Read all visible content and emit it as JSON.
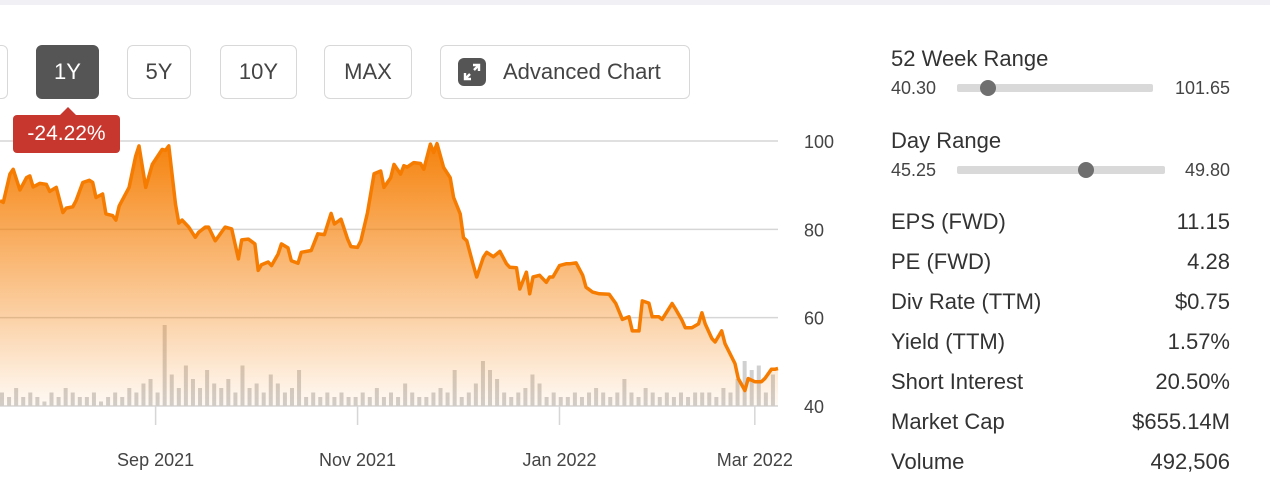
{
  "periods": {
    "partial": "",
    "y1": "1Y",
    "y5": "5Y",
    "y10": "10Y",
    "max": "MAX",
    "advanced": "Advanced Chart"
  },
  "change_badge": "-24.22%",
  "stats": {
    "week52": {
      "label": "52 Week Range",
      "low": "40.30",
      "high": "101.65",
      "position": 0.16
    },
    "day": {
      "label": "Day Range",
      "low": "45.25",
      "high": "49.80",
      "position": 0.62
    },
    "rows": [
      {
        "label": "EPS (FWD)",
        "value": "11.15"
      },
      {
        "label": "PE (FWD)",
        "value": "4.28"
      },
      {
        "label": "Div Rate (TTM)",
        "value": "$0.75"
      },
      {
        "label": "Yield (TTM)",
        "value": "1.57%"
      },
      {
        "label": "Short Interest",
        "value": "20.50%"
      },
      {
        "label": "Market Cap",
        "value": "$655.14M"
      },
      {
        "label": "Volume",
        "value": "492,506"
      }
    ]
  },
  "colors": {
    "line": "#f57c00",
    "badge": "#c8372d",
    "active": "#555555"
  },
  "chart_data": {
    "type": "area",
    "xunit": "days from 2021-09-01",
    "xlim": [
      -47,
      188
    ],
    "ylim": [
      40,
      100
    ],
    "yticks": [
      100,
      80,
      60,
      40
    ],
    "xticks": [
      {
        "day": 0,
        "label": "Sep 2021"
      },
      {
        "day": 61,
        "label": "Nov 2021"
      },
      {
        "day": 122,
        "label": "Jan 2022"
      },
      {
        "day": 181,
        "label": "Mar 2022"
      }
    ],
    "grid": true,
    "price": [
      [
        -47,
        86.5
      ],
      [
        -46,
        86.1
      ],
      [
        -44,
        92.5
      ],
      [
        -43,
        93.6
      ],
      [
        -41,
        88.9
      ],
      [
        -39,
        91.7
      ],
      [
        -38,
        92.1
      ],
      [
        -37,
        89.6
      ],
      [
        -35,
        90.4
      ],
      [
        -33,
        90.2
      ],
      [
        -32,
        88.6
      ],
      [
        -30,
        89.5
      ],
      [
        -28,
        83.8
      ],
      [
        -27,
        84.8
      ],
      [
        -25,
        85.1
      ],
      [
        -24,
        86.5
      ],
      [
        -22,
        90.6
      ],
      [
        -20,
        91.1
      ],
      [
        -19,
        90.6
      ],
      [
        -18,
        87.2
      ],
      [
        -16,
        88
      ],
      [
        -15,
        83.5
      ],
      [
        -13,
        83.1
      ],
      [
        -12,
        82.1
      ],
      [
        -11,
        85.3
      ],
      [
        -8,
        89.5
      ],
      [
        -6,
        96.6
      ],
      [
        -5,
        98.9
      ],
      [
        -3,
        89.5
      ],
      [
        -1,
        94.7
      ],
      [
        2,
        98.1
      ],
      [
        3,
        97.9
      ],
      [
        4,
        98.9
      ],
      [
        6,
        85.7
      ],
      [
        7,
        81.4
      ],
      [
        8,
        82.1
      ],
      [
        10,
        80.5
      ],
      [
        12,
        78.2
      ],
      [
        13,
        79.3
      ],
      [
        15,
        80.5
      ],
      [
        16,
        80.5
      ],
      [
        18,
        77.4
      ],
      [
        19,
        78.4
      ],
      [
        21,
        80.5
      ],
      [
        23,
        80.1
      ],
      [
        25,
        73.3
      ],
      [
        26,
        77.6
      ],
      [
        28,
        77.8
      ],
      [
        30,
        76.7
      ],
      [
        31,
        70.7
      ],
      [
        32,
        72
      ],
      [
        34,
        72.6
      ],
      [
        35,
        71.8
      ],
      [
        37,
        74.4
      ],
      [
        38,
        76.7
      ],
      [
        40,
        75.8
      ],
      [
        41,
        72.9
      ],
      [
        43,
        72.3
      ],
      [
        44,
        74.8
      ],
      [
        47,
        75.2
      ],
      [
        49,
        79
      ],
      [
        51,
        78.8
      ],
      [
        53,
        83.6
      ],
      [
        54,
        81.2
      ],
      [
        56,
        82.3
      ],
      [
        58,
        77.8
      ],
      [
        59,
        76.1
      ],
      [
        61,
        75.9
      ],
      [
        62,
        77.4
      ],
      [
        64,
        83.8
      ],
      [
        66,
        92.6
      ],
      [
        68,
        93.2
      ],
      [
        69,
        89.5
      ],
      [
        71,
        91.7
      ],
      [
        72,
        94.7
      ],
      [
        74,
        92.5
      ],
      [
        75,
        94.4
      ],
      [
        76,
        94.1
      ],
      [
        78,
        95.1
      ],
      [
        80,
        94.9
      ],
      [
        81,
        93.6
      ],
      [
        83,
        99.3
      ],
      [
        84,
        97.4
      ],
      [
        85,
        99.4
      ],
      [
        87,
        94
      ],
      [
        89,
        91.7
      ],
      [
        90,
        87.2
      ],
      [
        92,
        83.5
      ],
      [
        93,
        78.1
      ],
      [
        94,
        77.4
      ],
      [
        96,
        71.8
      ],
      [
        97,
        69.2
      ],
      [
        99,
        73.7
      ],
      [
        100,
        74.8
      ],
      [
        102,
        73.8
      ],
      [
        104,
        75
      ],
      [
        106,
        72.2
      ],
      [
        107,
        71.4
      ],
      [
        109,
        71.3
      ],
      [
        110,
        66.5
      ],
      [
        112,
        70.3
      ],
      [
        113,
        65.4
      ],
      [
        114,
        69.2
      ],
      [
        116,
        69.6
      ],
      [
        118,
        68
      ],
      [
        119,
        69.2
      ],
      [
        120,
        69.2
      ],
      [
        122,
        71.8
      ],
      [
        124,
        72.2
      ],
      [
        125,
        72.2
      ],
      [
        127,
        72.4
      ],
      [
        129,
        69.6
      ],
      [
        130,
        66.9
      ],
      [
        132,
        65.8
      ],
      [
        134,
        65.4
      ],
      [
        137,
        65.3
      ],
      [
        139,
        63.2
      ],
      [
        141,
        59.6
      ],
      [
        143,
        60.2
      ],
      [
        144,
        57
      ],
      [
        146,
        57
      ],
      [
        147,
        63.8
      ],
      [
        149,
        63.3
      ],
      [
        150,
        60.2
      ],
      [
        152,
        60.2
      ],
      [
        153,
        59.6
      ],
      [
        156,
        63.2
      ],
      [
        157,
        62
      ],
      [
        159,
        59.4
      ],
      [
        160,
        57.7
      ],
      [
        162,
        57.7
      ],
      [
        164,
        58.6
      ],
      [
        165,
        61.1
      ],
      [
        166,
        58.6
      ],
      [
        168,
        55.3
      ],
      [
        169,
        54.5
      ],
      [
        171,
        57
      ],
      [
        172,
        54.1
      ],
      [
        175,
        49.6
      ],
      [
        176,
        46.2
      ],
      [
        178,
        43.5
      ],
      [
        179,
        46.2
      ],
      [
        181,
        45.5
      ],
      [
        183,
        45.5
      ],
      [
        184,
        46.2
      ],
      [
        186,
        48.3
      ],
      [
        187,
        48.3
      ],
      [
        188,
        48.5
      ]
    ],
    "volume_relative": [
      3,
      2,
      4,
      2,
      3,
      2,
      1,
      3,
      2,
      4,
      3,
      2,
      2,
      3,
      1,
      2,
      3,
      2,
      4,
      3,
      5,
      6,
      3,
      18,
      7,
      4,
      9,
      6,
      4,
      8,
      5,
      4,
      6,
      3,
      9,
      4,
      5,
      3,
      7,
      5,
      3,
      4,
      8,
      2,
      3,
      2,
      3,
      2,
      3,
      2,
      2,
      3,
      2,
      4,
      2,
      3,
      2,
      5,
      3,
      2,
      2,
      3,
      4,
      3,
      8,
      2,
      3,
      5,
      10,
      8,
      6,
      3,
      2,
      3,
      4,
      7,
      5,
      2,
      3,
      2,
      2,
      3,
      2,
      3,
      4,
      3,
      2,
      3,
      6,
      3,
      2,
      4,
      3,
      2,
      3,
      2,
      3,
      2,
      3,
      3,
      3,
      2,
      4,
      3,
      6,
      10,
      8,
      9,
      3,
      7
    ]
  }
}
